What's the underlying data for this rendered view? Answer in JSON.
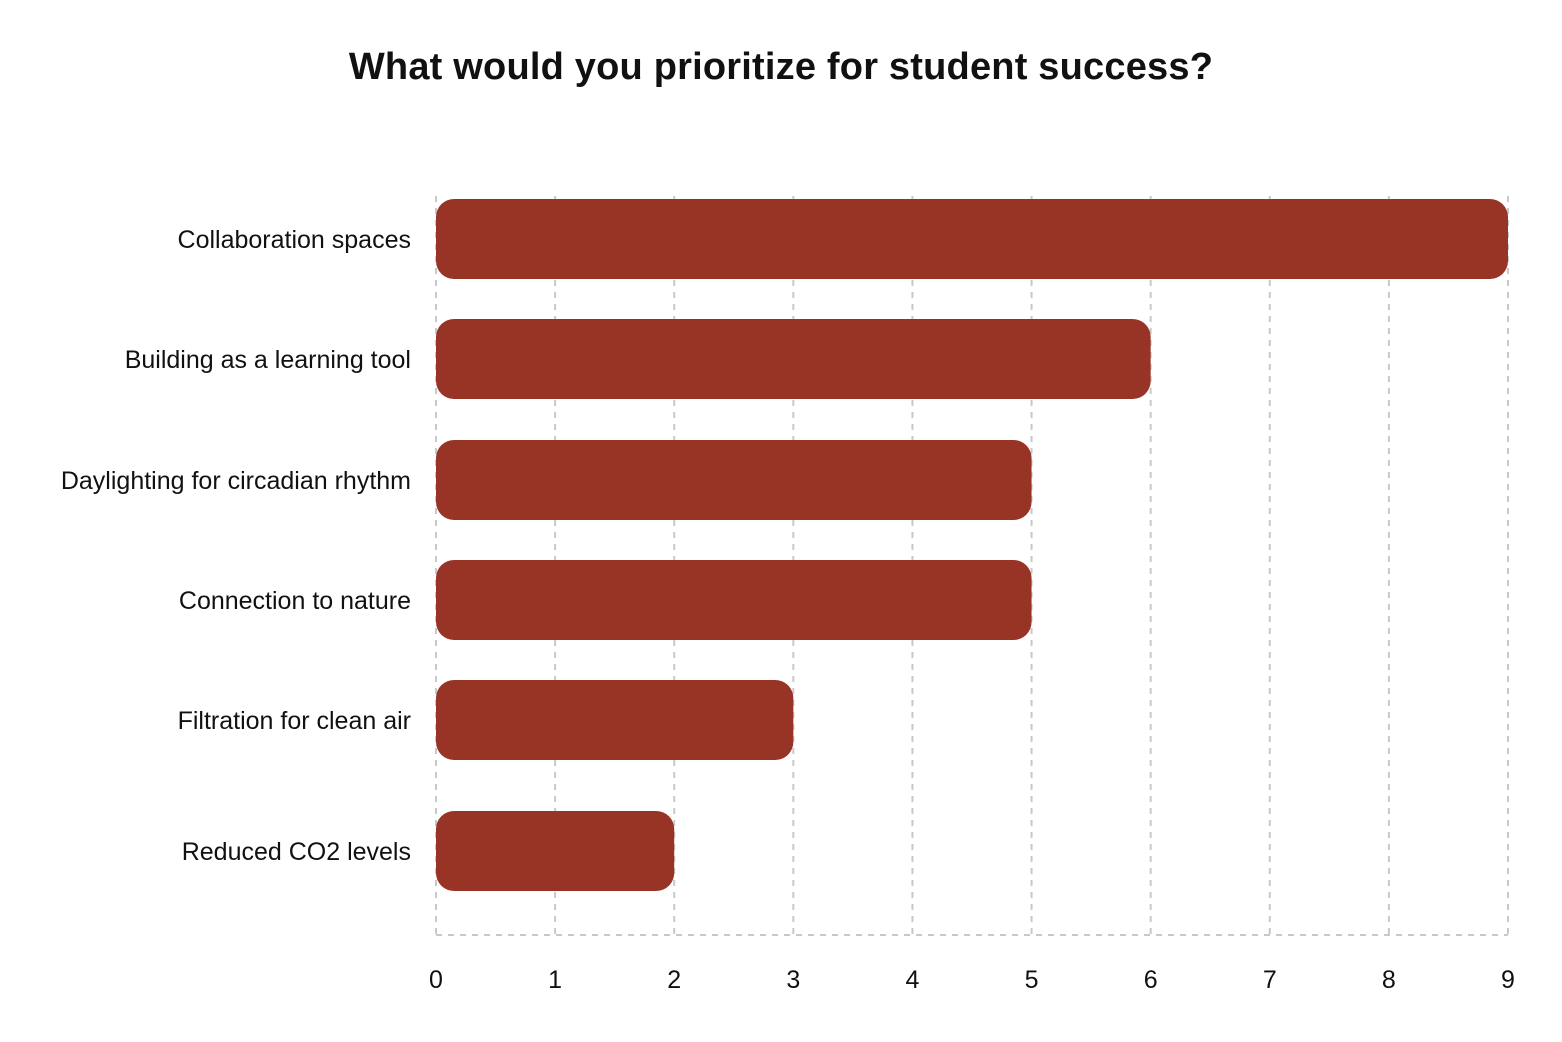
{
  "chart_data": {
    "type": "bar",
    "orientation": "horizontal",
    "title": "What would you prioritize for student success?",
    "xlabel": "",
    "ylabel": "",
    "categories": [
      "Collaboration spaces",
      "Building as a learning tool",
      "Daylighting for circadian rhythm",
      "Connection to nature",
      "Filtration for clean air",
      "Reduced CO2 levels"
    ],
    "values": [
      9,
      6,
      5,
      5,
      3,
      2
    ],
    "xlim": [
      0,
      9
    ],
    "xticks": [
      "0",
      "1",
      "2",
      "3",
      "4",
      "5",
      "6",
      "7",
      "8",
      "9"
    ],
    "grid": "vertical dashed",
    "legend": "none",
    "bar_color": "#983426",
    "grid_color": "#c8c8c8"
  }
}
